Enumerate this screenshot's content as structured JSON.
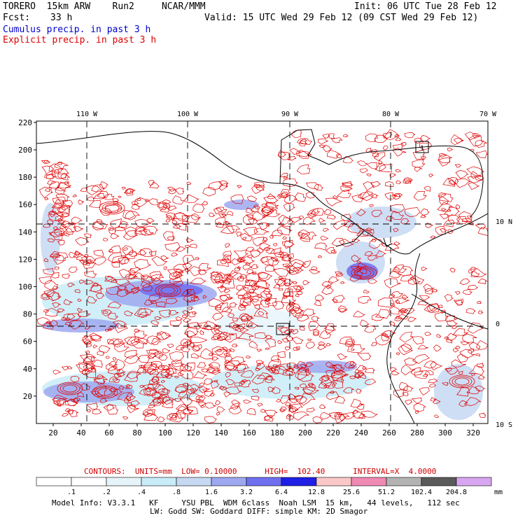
{
  "header": {
    "model_line": "TORERO  15km ARW    Run2     NCAR/MMM",
    "fcst_label": "Fcst:",
    "fcst_value": "33 h",
    "init": "Init: 06 UTC Tue 28 Feb 12",
    "valid": "Valid: 15 UTC Wed 29 Feb 12 (09 CST Wed 29 Feb 12)",
    "legend_cumulus": "Cumulus precip. in past 3 h",
    "legend_explicit": "Explicit precip. in past 3 h"
  },
  "colors": {
    "cumulus_text": "#0000cc",
    "explicit_text": "#e00000",
    "contour": "#e00000",
    "coast": "#000000",
    "grid": "#000000"
  },
  "map": {
    "x_ticks": [
      "20",
      "40",
      "60",
      "80",
      "100",
      "120",
      "140",
      "160",
      "180",
      "200",
      "220",
      "240",
      "260",
      "280",
      "300",
      "320"
    ],
    "y_ticks": [
      "20",
      "40",
      "60",
      "80",
      "100",
      "120",
      "140",
      "160",
      "180",
      "200",
      "220"
    ],
    "lon_labels": [
      "110 W",
      "100 W",
      "90 W",
      "80 W",
      "70 W"
    ],
    "lat_labels": [
      "10 N",
      "0",
      "10 S"
    ],
    "box_label": "1"
  },
  "contour_info": {
    "label": "CONTOURS:  UNITS=mm  LOW= 0.10000      HIGH=  102.40      INTERVAL=X  4.0000"
  },
  "colorbar": {
    "levels": [
      ".1",
      ".2",
      ".4",
      ".8",
      "1.6",
      "3.2",
      "6.4",
      "12.8",
      "25.6",
      "51.2",
      "102.4",
      "204.8"
    ],
    "unit": "mm",
    "colors": [
      "#ffffff",
      "#ffffff",
      "#e6f4fa",
      "#c8ecf8",
      "#c6d8f2",
      "#9ea8f0",
      "#6f6ff0",
      "#1f1fe6",
      "#fbc8c8",
      "#f08ab4",
      "#b3b3b3",
      "#5a5a5a",
      "#d8a6f0"
    ]
  },
  "footer": {
    "line1": "Model Info: V3.3.1   KF     YSU PBL  WDM 6class  Noah LSM  15 km,   44 levels,   112 sec",
    "line2": "LW: Godd SW: Goddard DIFF: simple KM: 2D Smagor"
  }
}
